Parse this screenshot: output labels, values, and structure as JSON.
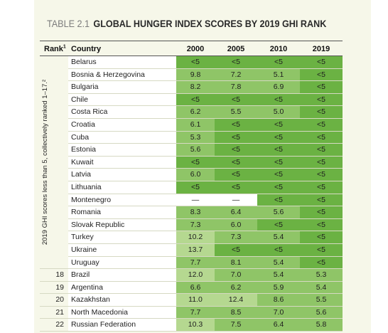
{
  "table": {
    "label": "TABLE 2.1",
    "title": "GLOBAL HUNGER INDEX SCORES BY 2019 GHI RANK",
    "headers": {
      "rank": "Rank",
      "rank_sup": "1",
      "country": "Country",
      "y2000": "2000",
      "y2005": "2005",
      "y2010": "2010",
      "y2019": "2019"
    },
    "group_label": "2019 GHI scores less than 5, collectively ranked 1–17.²",
    "rows": [
      {
        "rank": "",
        "country": "Belarus",
        "y2000": "<5",
        "y2005": "<5",
        "y2010": "<5",
        "y2019": "<5"
      },
      {
        "rank": "",
        "country": "Bosnia & Herzegovina",
        "y2000": "9.8",
        "y2005": "7.2",
        "y2010": "5.1",
        "y2019": "<5"
      },
      {
        "rank": "",
        "country": "Bulgaria",
        "y2000": "8.2",
        "y2005": "7.8",
        "y2010": "6.9",
        "y2019": "<5"
      },
      {
        "rank": "",
        "country": "Chile",
        "y2000": "<5",
        "y2005": "<5",
        "y2010": "<5",
        "y2019": "<5"
      },
      {
        "rank": "",
        "country": "Costa Rica",
        "y2000": "6.2",
        "y2005": "5.5",
        "y2010": "5.0",
        "y2019": "<5"
      },
      {
        "rank": "",
        "country": "Croatia",
        "y2000": "6.1",
        "y2005": "<5",
        "y2010": "<5",
        "y2019": "<5"
      },
      {
        "rank": "",
        "country": "Cuba",
        "y2000": "5.3",
        "y2005": "<5",
        "y2010": "<5",
        "y2019": "<5"
      },
      {
        "rank": "",
        "country": "Estonia",
        "y2000": "5.6",
        "y2005": "<5",
        "y2010": "<5",
        "y2019": "<5"
      },
      {
        "rank": "",
        "country": "Kuwait",
        "y2000": "<5",
        "y2005": "<5",
        "y2010": "<5",
        "y2019": "<5"
      },
      {
        "rank": "",
        "country": "Latvia",
        "y2000": "6.0",
        "y2005": "<5",
        "y2010": "<5",
        "y2019": "<5"
      },
      {
        "rank": "",
        "country": "Lithuania",
        "y2000": "<5",
        "y2005": "<5",
        "y2010": "<5",
        "y2019": "<5"
      },
      {
        "rank": "",
        "country": "Montenegro",
        "y2000": "—",
        "y2005": "—",
        "y2010": "<5",
        "y2019": "<5"
      },
      {
        "rank": "",
        "country": "Romania",
        "y2000": "8.3",
        "y2005": "6.4",
        "y2010": "5.6",
        "y2019": "<5"
      },
      {
        "rank": "",
        "country": "Slovak Republic",
        "y2000": "7.3",
        "y2005": "6.0",
        "y2010": "<5",
        "y2019": "<5"
      },
      {
        "rank": "",
        "country": "Turkey",
        "y2000": "10.2",
        "y2005": "7.3",
        "y2010": "5.4",
        "y2019": "<5"
      },
      {
        "rank": "",
        "country": "Ukraine",
        "y2000": "13.7",
        "y2005": "<5",
        "y2010": "<5",
        "y2019": "<5"
      },
      {
        "rank": "",
        "country": "Uruguay",
        "y2000": "7.7",
        "y2005": "8.1",
        "y2010": "5.4",
        "y2019": "<5"
      },
      {
        "rank": "18",
        "country": "Brazil",
        "y2000": "12.0",
        "y2005": "7.0",
        "y2010": "5.4",
        "y2019": "5.3"
      },
      {
        "rank": "19",
        "country": "Argentina",
        "y2000": "6.6",
        "y2005": "6.2",
        "y2010": "5.9",
        "y2019": "5.4"
      },
      {
        "rank": "20",
        "country": "Kazakhstan",
        "y2000": "11.0",
        "y2005": "12.4",
        "y2010": "8.6",
        "y2019": "5.5"
      },
      {
        "rank": "21",
        "country": "North Macedonia",
        "y2000": "7.7",
        "y2005": "8.5",
        "y2010": "7.0",
        "y2019": "5.6"
      },
      {
        "rank": "22",
        "country": "Russian Federation",
        "y2000": "10.3",
        "y2005": "7.5",
        "y2010": "6.4",
        "y2019": "5.8"
      }
    ]
  },
  "colors": {
    "below_5": "#6bb243",
    "low_5_to_9_9": "#8fc567",
    "moderate_10_to_19_9": "#b5d890",
    "no_data": "#ffffff"
  }
}
